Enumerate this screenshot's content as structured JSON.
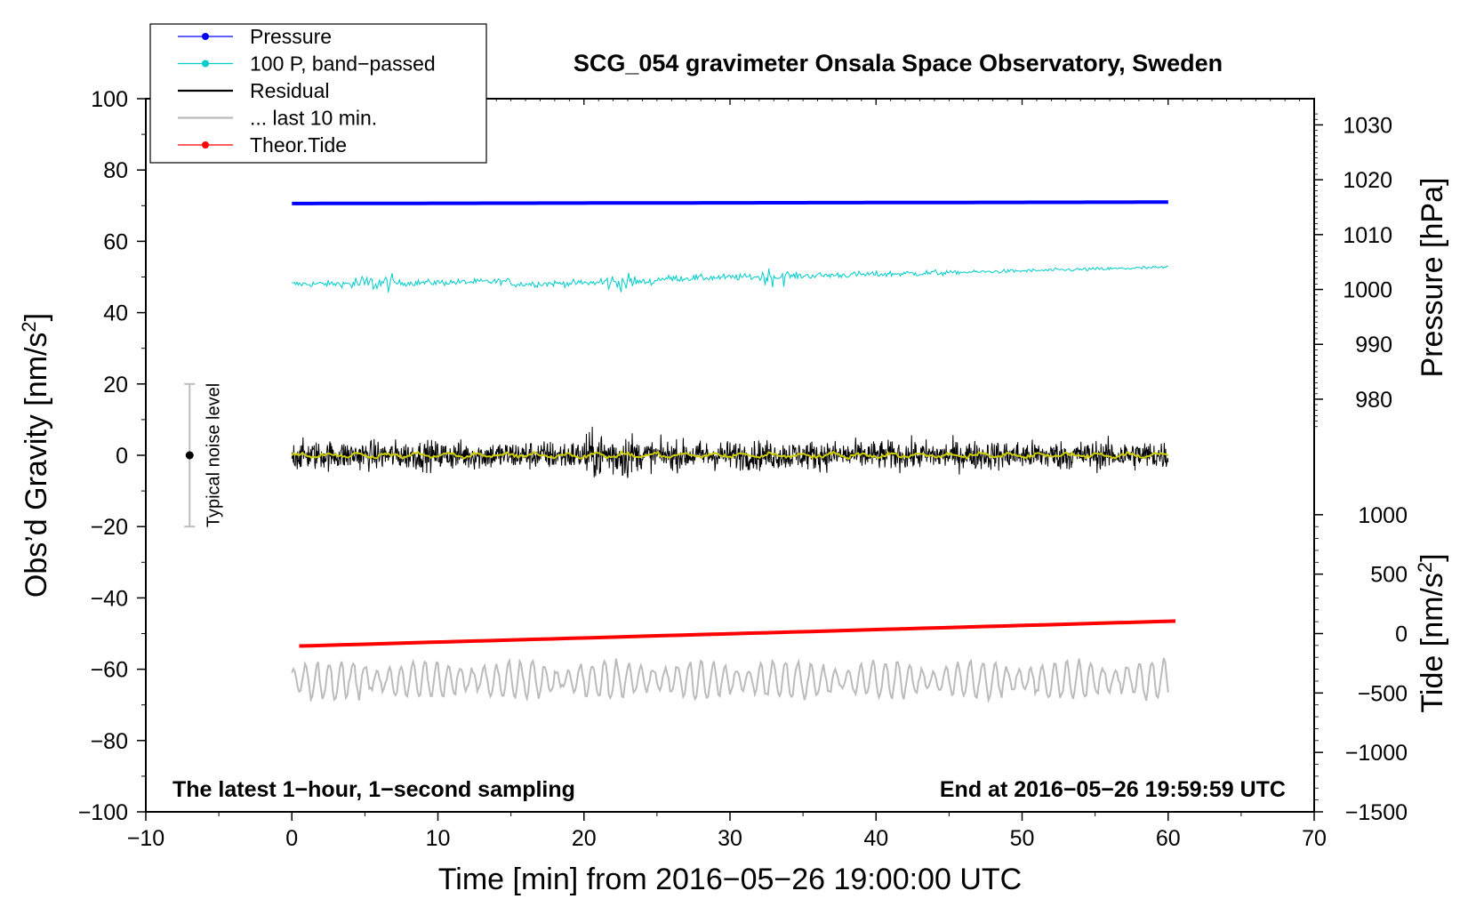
{
  "chart_data": {
    "type": "line",
    "title": "SCG_054 gravimeter Onsala Space Observatory, Sweden",
    "xlabel": "Time [min] from 2016−05−26 19:00:00 UTC",
    "ylabel": "Obs’d Gravity [nm/s",
    "ylabel_sup": "2",
    "ylabel_end": "]",
    "y2_pressure_label": "Pressure [hPa]",
    "y2_tide_label": "Tide [nm/s",
    "y2_tide_sup": "2",
    "y2_tide_end": "]",
    "xlim": [
      -10,
      70
    ],
    "ylim": [
      -100,
      100
    ],
    "x_ticks": [
      -10,
      0,
      10,
      20,
      30,
      40,
      50,
      60,
      70
    ],
    "x_tick_labels": [
      "−10",
      "0",
      "10",
      "20",
      "30",
      "40",
      "50",
      "60",
      "70"
    ],
    "y_ticks": [
      -100,
      -80,
      -60,
      -40,
      -20,
      0,
      20,
      40,
      60,
      80,
      100
    ],
    "y_tick_labels": [
      "−100",
      "−80",
      "−60",
      "−40",
      "−20",
      "0",
      "20",
      "40",
      "60",
      "80",
      "100"
    ],
    "pressure_axis": {
      "ticks": [
        980,
        990,
        1000,
        1010,
        1020,
        1030
      ],
      "tick_labels": [
        "980",
        "990",
        "1000",
        "1010",
        "1020",
        "1030"
      ],
      "gravity_at_1000": 46.5,
      "units_per_hpa": 1.5385
    },
    "tide_axis": {
      "ticks": [
        -1500,
        -1000,
        -500,
        0,
        500,
        1000
      ],
      "tick_labels": [
        "−1500",
        "−1000",
        "−500",
        "0",
        "500",
        "1000"
      ],
      "gravity_at_0": -50,
      "units_per_nms2": 0.03333
    },
    "legend": {
      "placement": "top-left",
      "entries": [
        {
          "label": "Pressure",
          "color": "#0000ff",
          "marker": true
        },
        {
          "label": "100 P, band−passed",
          "color": "#00cccc",
          "marker": true
        },
        {
          "label": "Residual",
          "color": "#000000",
          "marker": false
        },
        {
          "label": "... last 10 min.",
          "color": "#bbbbbb",
          "marker": false
        },
        {
          "label": "Theor.Tide",
          "color": "#ff0000",
          "marker": true
        }
      ]
    },
    "series": [
      {
        "name": "Pressure",
        "color": "#0000ff",
        "x_range": [
          0,
          60
        ],
        "y_start": 70.6,
        "y_end": 71.0
      },
      {
        "name": "100 P, band−passed",
        "color": "#00cccc",
        "x_range": [
          0,
          60
        ],
        "y_start": 48.0,
        "y_end": 52.7
      },
      {
        "name": "Residual",
        "color": "#000000",
        "x_range": [
          0,
          60
        ],
        "y_center": 0,
        "y_amplitude": 8
      },
      {
        "name": "Residual smoothed",
        "color": "#cccc00",
        "x_range": [
          0,
          60
        ],
        "y_center": 0,
        "y_amplitude": 1
      },
      {
        "name": "... last 10 min.",
        "color": "#bbbbbb",
        "x_range": [
          0,
          60
        ],
        "y_center": -63,
        "y_amplitude": 7
      },
      {
        "name": "Theor.Tide",
        "color": "#ff0000",
        "x_range": [
          0.5,
          60.5
        ],
        "y_start": -53.5,
        "y_end": -46.5
      }
    ],
    "noise_bar": {
      "x": -7,
      "y_center": 0,
      "y_low": -20,
      "y_high": 20,
      "label": "Typical noise level"
    },
    "annotations": {
      "left": "The latest 1−hour, 1−second sampling",
      "right": "End at 2016−05−26 19:59:59 UTC"
    }
  }
}
